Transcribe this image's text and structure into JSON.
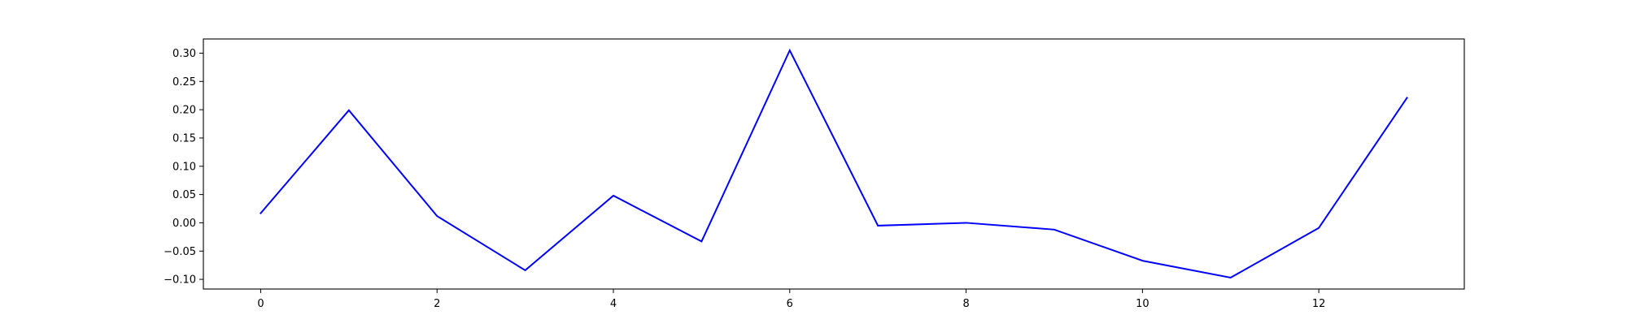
{
  "chart_data": {
    "type": "line",
    "title": "",
    "xlabel": "",
    "ylabel": "",
    "x": [
      0,
      1,
      2,
      3,
      4,
      5,
      6,
      7,
      8,
      9,
      10,
      11,
      12,
      13
    ],
    "series": [
      {
        "values": [
          0.017,
          0.199,
          0.012,
          -0.084,
          0.048,
          -0.033,
          0.305,
          -0.005,
          0.0,
          -0.012,
          -0.067,
          -0.097,
          -0.009,
          0.221
        ],
        "color": "#0000ff"
      }
    ],
    "xlim": [
      -0.65,
      13.65
    ],
    "ylim": [
      -0.1171,
      0.3251
    ],
    "xticks": [
      0,
      2,
      4,
      6,
      8,
      10,
      12
    ],
    "xtick_labels": [
      "0",
      "2",
      "4",
      "6",
      "8",
      "10",
      "12"
    ],
    "yticks": [
      -0.1,
      -0.05,
      0.0,
      0.05,
      0.1,
      0.15,
      0.2,
      0.25,
      0.3
    ],
    "ytick_labels": [
      "−0.10",
      "−0.05",
      "0.00",
      "0.05",
      "0.10",
      "0.15",
      "0.20",
      "0.25",
      "0.30"
    ],
    "grid": false,
    "legend": "none"
  }
}
